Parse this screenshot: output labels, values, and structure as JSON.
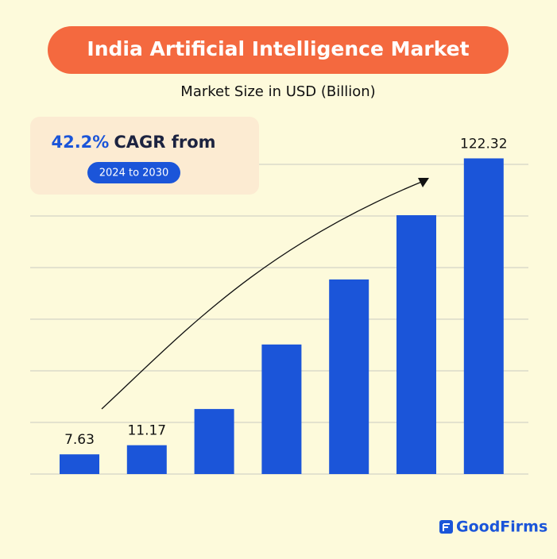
{
  "chart_data": {
    "type": "bar",
    "title": "India Artificial Intelligence Market",
    "subtitle": "Market Size in USD (Billion)",
    "annotation": {
      "highlight": "42.2%",
      "text": "CAGR from",
      "badge": "2024 to 2030"
    },
    "brand": "GoodFirms",
    "values": [
      7.63,
      11.17,
      25.2,
      50.2,
      75.4,
      100.3,
      122.32
    ],
    "value_labels": [
      "7.63",
      "11.17",
      null,
      null,
      null,
      null,
      "122.32"
    ],
    "color": "#1b55d9",
    "ylim": [
      0,
      130
    ],
    "yticks": [
      0,
      20,
      40,
      60,
      80,
      100,
      120
    ],
    "grid": true
  }
}
